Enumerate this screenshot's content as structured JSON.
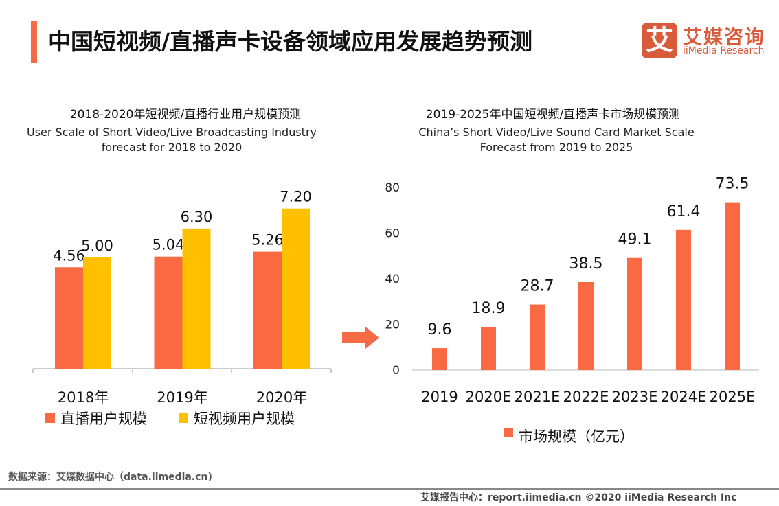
{
  "header": {
    "title": "中国短视频/直播声卡设备领域应用发展趋势预测",
    "logo_mark": "艾",
    "logo_cn": "艾媒咨询",
    "logo_en": "iiMedia Research"
  },
  "colors": {
    "orange": "#F96A43",
    "yellow": "#FFC000",
    "accent": "#F46B45"
  },
  "chart_data": [
    {
      "type": "bar",
      "title": "2018-2020年短视频/直播行业用户规模预测",
      "subtitle": "User Scale of Short Video/Live Broadcasting Industry forecast for 2018 to 2020",
      "categories": [
        "2018年",
        "2019年",
        "2020年"
      ],
      "series": [
        {
          "name": "直播用户规模",
          "values": [
            4.56,
            5.04,
            5.26
          ],
          "labels": [
            "4.56",
            "5.04",
            "5.26"
          ]
        },
        {
          "name": "短视频用户规模",
          "values": [
            5.0,
            6.3,
            7.2
          ],
          "labels": [
            "5.00",
            "6.30",
            "7.20"
          ]
        }
      ],
      "legend": "bottom",
      "grid": false
    },
    {
      "type": "bar",
      "title": "2019-2025年中国短视频/直播声卡市场规模预测",
      "subtitle": "China’s Short Video/Live Sound Card Market Scale Forecast from 2019 to 2025",
      "categories": [
        "2019",
        "2020E",
        "2021E",
        "2022E",
        "2023E",
        "2024E",
        "2025E"
      ],
      "series": [
        {
          "name": "市场规模（亿元）",
          "values": [
            9.6,
            18.9,
            28.7,
            38.5,
            49.1,
            61.4,
            73.5
          ],
          "labels": [
            "9.6",
            "18.9",
            "28.7",
            "38.5",
            "49.1",
            "61.4",
            "73.5"
          ]
        }
      ],
      "ylim": [
        0,
        80
      ],
      "yticks": [
        "0",
        "20",
        "40",
        "60",
        "80"
      ],
      "legend": "bottom",
      "grid": false
    }
  ],
  "footer": {
    "source": "数据来源：艾媒数据中心（data.iimedia.cn)",
    "report": "艾媒报告中心：report.iimedia.cn   ©2020  iiMedia Research  Inc"
  }
}
